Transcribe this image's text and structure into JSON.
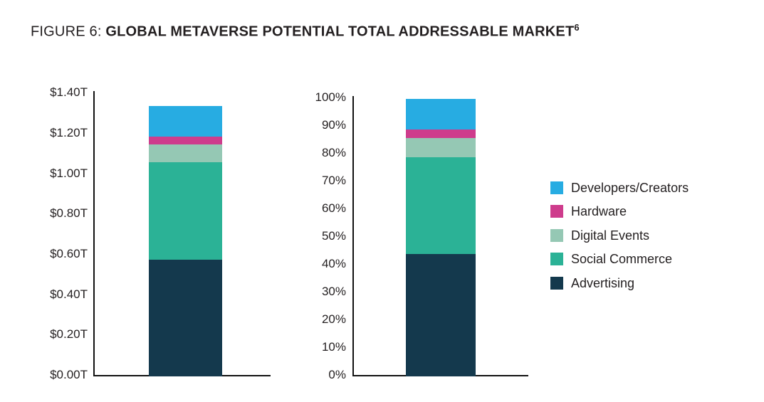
{
  "title": {
    "prefix": "FIGURE 6: ",
    "main": "GLOBAL METAVERSE POTENTIAL TOTAL ADDRESSABLE MARKET",
    "superscript": "6"
  },
  "colors": {
    "developers_creators": "#27ACE2",
    "hardware": "#CE3C8C",
    "digital_events": "#95C8B4",
    "social_commerce": "#2BB296",
    "advertising": "#14394D",
    "axis_line": "#111111",
    "text": "#231F20",
    "background": "#FFFFFF"
  },
  "legend": {
    "position": "right-middle",
    "items": [
      {
        "label": "Developers/Creators",
        "color": "#27ACE2"
      },
      {
        "label": "Hardware",
        "color": "#CE3C8C"
      },
      {
        "label": "Digital Events",
        "color": "#95C8B4"
      },
      {
        "label": "Social Commerce",
        "color": "#2BB296"
      },
      {
        "label": "Advertising",
        "color": "#14394D"
      }
    ]
  },
  "chart_data": [
    {
      "type": "bar",
      "subtype": "stacked-column",
      "title": "",
      "categories": [
        ""
      ],
      "xlabel": "",
      "ylabel": "",
      "unit": "USD trillions",
      "ylim": [
        0,
        1.4
      ],
      "ytick_step": 0.2,
      "ytick_labels": [
        "$0.00T",
        "$0.20T",
        "$0.40T",
        "$0.60T",
        "$0.80T",
        "$1.00T",
        "$1.20T",
        "$1.40T"
      ],
      "grid": false,
      "legend_position": "right",
      "total_estimate": 1.34,
      "stack_bottom_to_top": [
        "Advertising",
        "Social Commerce",
        "Digital Events",
        "Hardware",
        "Developers/Creators"
      ],
      "series": [
        {
          "name": "Developers/Creators",
          "values": [
            0.15
          ],
          "color": "#27ACE2"
        },
        {
          "name": "Hardware",
          "values": [
            0.04
          ],
          "color": "#CE3C8C"
        },
        {
          "name": "Digital Events",
          "values": [
            0.09
          ],
          "color": "#95C8B4"
        },
        {
          "name": "Social Commerce",
          "values": [
            0.48
          ],
          "color": "#2BB296"
        },
        {
          "name": "Advertising",
          "values": [
            0.58
          ],
          "color": "#14394D"
        }
      ]
    },
    {
      "type": "bar",
      "subtype": "stacked-column-100percent",
      "title": "",
      "categories": [
        ""
      ],
      "xlabel": "",
      "ylabel": "",
      "unit": "percent",
      "ylim": [
        0,
        100
      ],
      "ytick_step": 10,
      "ytick_labels": [
        "0%",
        "10%",
        "20%",
        "30%",
        "40%",
        "50%",
        "60%",
        "70%",
        "80%",
        "90%",
        "100%"
      ],
      "grid": false,
      "legend_position": "right",
      "stack_bottom_to_top": [
        "Advertising",
        "Social Commerce",
        "Digital Events",
        "Hardware",
        "Developers/Creators"
      ],
      "series": [
        {
          "name": "Developers/Creators",
          "values": [
            11
          ],
          "color": "#27ACE2"
        },
        {
          "name": "Hardware",
          "values": [
            3
          ],
          "color": "#CE3C8C"
        },
        {
          "name": "Digital Events",
          "values": [
            7
          ],
          "color": "#95C8B4"
        },
        {
          "name": "Social Commerce",
          "values": [
            35
          ],
          "color": "#2BB296"
        },
        {
          "name": "Advertising",
          "values": [
            44
          ],
          "color": "#14394D"
        }
      ]
    }
  ]
}
